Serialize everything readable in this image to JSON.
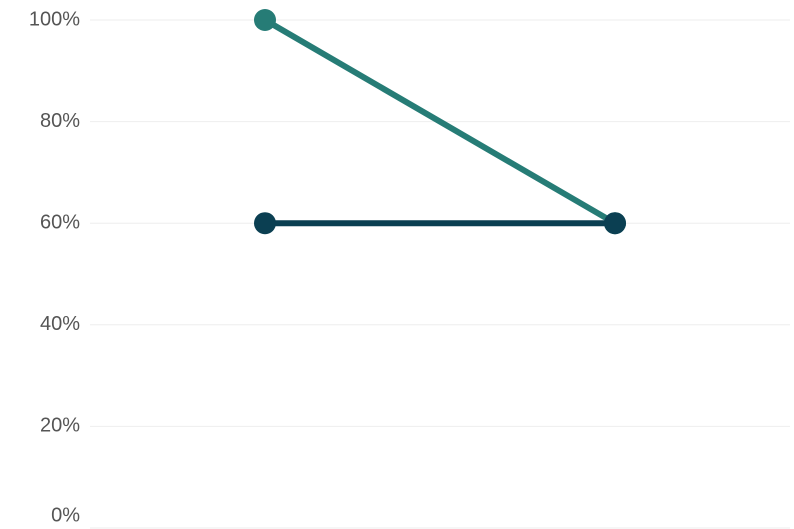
{
  "chart_data": {
    "type": "line",
    "categories": [
      null,
      null
    ],
    "series": [
      {
        "color": "#267c76",
        "values": [
          100,
          60
        ]
      },
      {
        "color": "#0b3f52",
        "values": [
          60,
          60
        ]
      }
    ],
    "ylim": [
      0,
      100
    ],
    "yticks": [
      {
        "value": 0,
        "label": "0%"
      },
      {
        "value": 20,
        "label": "20%"
      },
      {
        "value": 40,
        "label": "40%"
      },
      {
        "value": 60,
        "label": "60%"
      },
      {
        "value": 80,
        "label": "80%"
      },
      {
        "value": 100,
        "label": "100%"
      }
    ],
    "grid": true
  }
}
